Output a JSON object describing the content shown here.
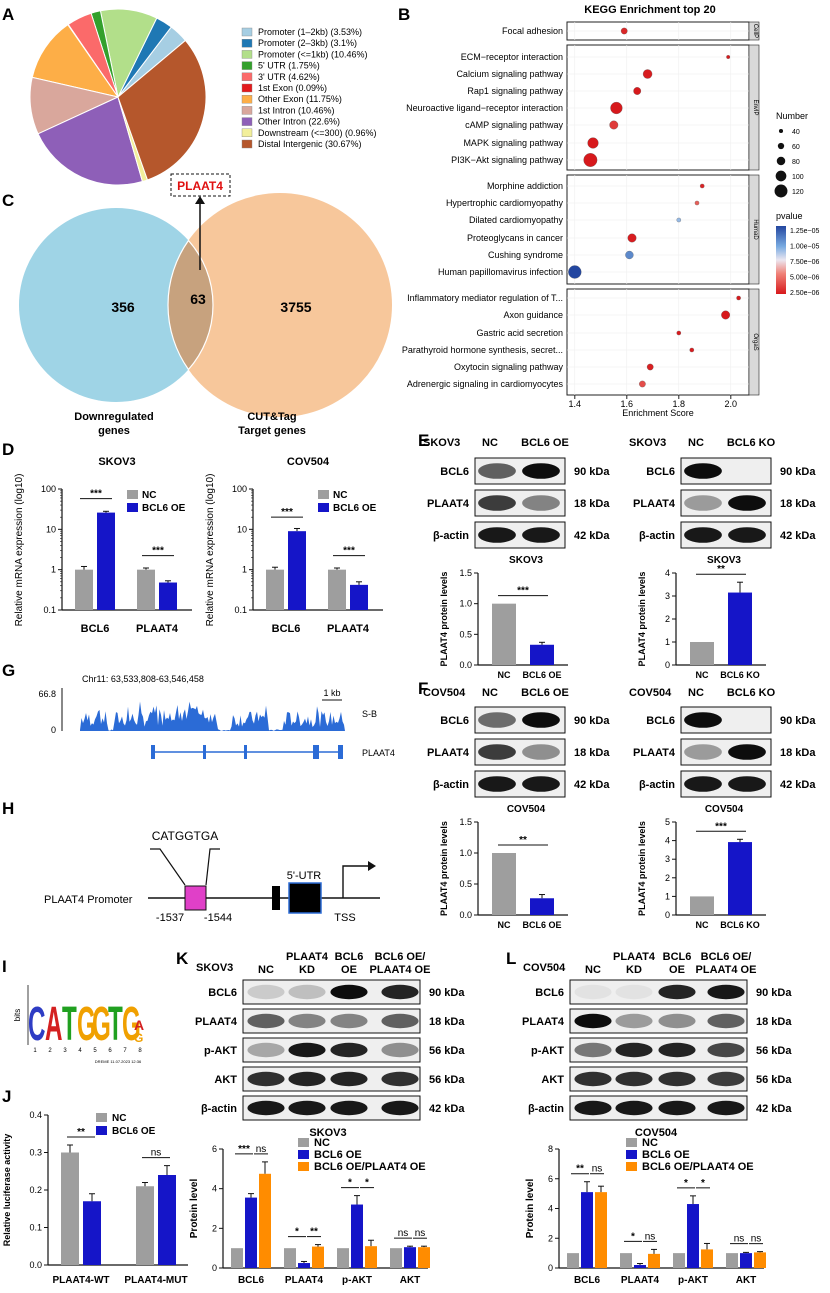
{
  "panels": {
    "A": "A",
    "B": "B",
    "C": "C",
    "D": "D",
    "E": "E",
    "F": "F",
    "G": "G",
    "H": "H",
    "I": "I",
    "J": "J",
    "K": "K",
    "L": "L"
  },
  "colors": {
    "nc": "#9e9e9e",
    "oe": "#1515c8",
    "oe_pl": "#ff8c00",
    "venn_left": "#9fd4e6",
    "venn_right": "#f7c79b",
    "venn_mid": "#c7a27e",
    "track": "#2b6bd6",
    "motif_pink": "#e040c8"
  },
  "chart_data": [
    {
      "id": "A",
      "type": "pie",
      "slices": [
        {
          "label": "Promoter (1–2kb) (3.53%)",
          "value": 3.53,
          "color": "#a6cee3"
        },
        {
          "label": "Promoter (2–3kb) (3.1%)",
          "value": 3.1,
          "color": "#1f78b4"
        },
        {
          "label": "Promoter (<=1kb) (10.46%)",
          "value": 10.46,
          "color": "#b2df8a"
        },
        {
          "label": "5' UTR (1.75%)",
          "value": 1.75,
          "color": "#33a02c"
        },
        {
          "label": "3' UTR (4.62%)",
          "value": 4.62,
          "color": "#fb6a6a"
        },
        {
          "label": "1st Exon (0.09%)",
          "value": 0.09,
          "color": "#e31a1c"
        },
        {
          "label": "Other Exon (11.75%)",
          "value": 11.75,
          "color": "#fdae47"
        },
        {
          "label": "1st Intron (10.46%)",
          "value": 10.46,
          "color": "#d9a79c"
        },
        {
          "label": "Other Intron (22.6%)",
          "value": 22.6,
          "color": "#8e5fb8"
        },
        {
          "label": "Downstream (<=300) (0.96%)",
          "value": 0.96,
          "color": "#f2ef9a"
        },
        {
          "label": "Distal Intergenic (30.67%)",
          "value": 30.67,
          "color": "#b5572c"
        }
      ]
    },
    {
      "id": "B",
      "type": "scatter",
      "title": "KEGG Enrichment top 20",
      "xlabel": "Enrichment Score",
      "xlim": [
        1.37,
        2.07
      ],
      "xticks": [
        "1.4",
        "1.6",
        "1.8",
        "2.0"
      ],
      "groups": [
        {
          "name": "CellP",
          "items": [
            {
              "term": "Focal adhesion",
              "x": 1.59,
              "n": 60,
              "p": 2.9e-06
            }
          ]
        },
        {
          "name": "EnvIP",
          "items": [
            {
              "term": "ECM−receptor interaction",
              "x": 1.99,
              "n": 35,
              "p": 2.5e-06
            },
            {
              "term": "Calcium signaling pathway",
              "x": 1.68,
              "n": 85,
              "p": 2.6e-06
            },
            {
              "term": "Rap1 signaling pathway",
              "x": 1.64,
              "n": 70,
              "p": 2.5e-06
            },
            {
              "term": "Neuroactive ligand−receptor interaction",
              "x": 1.56,
              "n": 110,
              "p": 2.5e-06
            },
            {
              "term": "cAMP signaling pathway",
              "x": 1.55,
              "n": 80,
              "p": 3.5e-06
            },
            {
              "term": "MAPK signaling pathway",
              "x": 1.47,
              "n": 100,
              "p": 2.5e-06
            },
            {
              "term": "PI3K−Akt signaling pathway",
              "x": 1.46,
              "n": 125,
              "p": 2.5e-06
            }
          ]
        },
        {
          "name": "HumaD",
          "items": [
            {
              "term": "Morphine addiction",
              "x": 1.89,
              "n": 40,
              "p": 2.8e-06
            },
            {
              "term": "Hypertrophic cardiomyopathy",
              "x": 1.87,
              "n": 40,
              "p": 4.5e-06
            },
            {
              "term": "Dilated cardiomyopathy",
              "x": 1.8,
              "n": 40,
              "p": 9e-06
            },
            {
              "term": "Proteoglycans in cancer",
              "x": 1.62,
              "n": 80,
              "p": 2.6e-06
            },
            {
              "term": "Cushing syndrome",
              "x": 1.61,
              "n": 75,
              "p": 1.05e-05
            },
            {
              "term": "Human papillomavirus infection",
              "x": 1.4,
              "n": 120,
              "p": 1.25e-05
            }
          ]
        },
        {
          "name": "OrgaS",
          "items": [
            {
              "term": "Inflammatory mediator regulation of T...",
              "x": 2.03,
              "n": 40,
              "p": 2.5e-06
            },
            {
              "term": "Axon guidance",
              "x": 1.98,
              "n": 80,
              "p": 2.5e-06
            },
            {
              "term": "Gastric acid secretion",
              "x": 1.8,
              "n": 40,
              "p": 2.5e-06
            },
            {
              "term": "Parathyroid hormone synthesis, secret...",
              "x": 1.85,
              "n": 40,
              "p": 2.6e-06
            },
            {
              "term": "Oxytocin signaling pathway",
              "x": 1.69,
              "n": 60,
              "p": 2.7e-06
            },
            {
              "term": "Adrenergic signaling in cardiomyocytes",
              "x": 1.66,
              "n": 60,
              "p": 4e-06
            }
          ]
        }
      ],
      "size_legend": {
        "title": "Number",
        "values": [
          "40",
          "60",
          "80",
          "100",
          "120"
        ]
      },
      "color_legend": {
        "title": "pvalue",
        "labels": [
          "1.25e−05",
          "1.00e−05",
          "7.50e−06",
          "5.00e−06",
          "2.50e−06"
        ]
      }
    },
    {
      "id": "C",
      "type": "venn",
      "label": "PLAAT4",
      "left": {
        "value": "356",
        "label": [
          "Downregulated",
          "genes"
        ]
      },
      "overlap": "63",
      "right": {
        "value": "3755",
        "label": [
          "CUT&Tag",
          "Target genes"
        ]
      }
    },
    {
      "id": "D",
      "type": "bar",
      "ylabel": "Relative mRNA expression (log10)",
      "yticks": [
        "100",
        "10",
        "1",
        "0.1"
      ],
      "legend": [
        "NC",
        "BCL6 OE"
      ],
      "charts": [
        {
          "title": "SKOV3",
          "categories": [
            "BCL6",
            "PLAAT4"
          ],
          "nc": [
            1,
            1
          ],
          "oe": [
            26,
            0.48
          ],
          "nc_err": [
            0.2,
            0.1
          ],
          "oe_err": [
            2,
            0.05
          ],
          "sig": [
            "***",
            "***"
          ]
        },
        {
          "title": "COV504",
          "categories": [
            "BCL6",
            "PLAAT4"
          ],
          "nc": [
            1,
            1
          ],
          "oe": [
            9,
            0.42
          ],
          "nc_err": [
            0.15,
            0.1
          ],
          "oe_err": [
            1.5,
            0.08
          ],
          "sig": [
            "***",
            "***"
          ]
        }
      ]
    },
    {
      "id": "EF",
      "type": "bar",
      "ylabel": "PLAAT4 protein levels",
      "charts": [
        {
          "title": "SKOV3",
          "categories": [
            "NC",
            "BCL6 OE"
          ],
          "values": [
            1,
            0.33
          ],
          "err": [
            0,
            0.04
          ],
          "ylim": [
            0,
            1.5
          ],
          "yticks": [
            "0.0",
            "0.5",
            "1.0",
            "1.5"
          ],
          "sig": "***"
        },
        {
          "title": "SKOV3",
          "categories": [
            "NC",
            "BCL6 KO"
          ],
          "values": [
            1,
            3.15
          ],
          "err": [
            0,
            0.45
          ],
          "ylim": [
            0,
            4
          ],
          "yticks": [
            "0",
            "1",
            "2",
            "3",
            "4"
          ],
          "sig": "**"
        },
        {
          "title": "COV504",
          "categories": [
            "NC",
            "BCL6 OE"
          ],
          "values": [
            1,
            0.27
          ],
          "err": [
            0,
            0.06
          ],
          "ylim": [
            0,
            1.5
          ],
          "yticks": [
            "0.0",
            "0.5",
            "1.0",
            "1.5"
          ],
          "sig": "**"
        },
        {
          "title": "COV504",
          "categories": [
            "NC",
            "BCL6 KO"
          ],
          "values": [
            1,
            3.92
          ],
          "err": [
            0,
            0.15
          ],
          "ylim": [
            0,
            5
          ],
          "yticks": [
            "0",
            "1",
            "2",
            "3",
            "4",
            "5"
          ],
          "sig": "***"
        }
      ]
    },
    {
      "id": "J",
      "type": "bar",
      "ylabel": "Relative luciferase activity",
      "ylim": [
        0,
        0.4
      ],
      "yticks": [
        "0.0",
        "0.1",
        "0.2",
        "0.3",
        "0.4"
      ],
      "categories": [
        "PLAAT4-WT",
        "PLAAT4-MUT"
      ],
      "legend": [
        "NC",
        "BCL6 OE"
      ],
      "nc": [
        0.3,
        0.21
      ],
      "oe": [
        0.17,
        0.24
      ],
      "nc_err": [
        0.02,
        0.01
      ],
      "oe_err": [
        0.02,
        0.025
      ],
      "sig": [
        "**",
        "ns"
      ]
    },
    {
      "id": "KL",
      "type": "bar",
      "ylabel": "Protein level",
      "legend": [
        "NC",
        "BCL6 OE",
        "BCL6 OE/PLAAT4 OE"
      ],
      "categories": [
        "BCL6",
        "PLAAT4",
        "p-AKT",
        "AKT"
      ],
      "charts": [
        {
          "title": "SKOV3",
          "ylim": [
            0,
            6
          ],
          "yticks": [
            "0",
            "2",
            "4",
            "6"
          ],
          "series": [
            {
              "name": "NC",
              "values": [
                1,
                1,
                1,
                1
              ]
            },
            {
              "name": "BCL6 OE",
              "values": [
                3.55,
                0.25,
                3.2,
                1.05
              ]
            },
            {
              "name": "BCL6 OE/PLAAT4 OE",
              "values": [
                4.75,
                1.08,
                1.1,
                1.05
              ]
            }
          ],
          "err": [
            [
              0,
              0,
              0,
              0
            ],
            [
              0.2,
              0.08,
              0.45,
              0.05
            ],
            [
              0.6,
              0.1,
              0.3,
              0.05
            ]
          ],
          "sig": [
            [
              "***",
              "ns"
            ],
            [
              "*",
              "**"
            ],
            [
              "*",
              "*"
            ],
            [
              "ns",
              "ns"
            ]
          ]
        },
        {
          "title": "COV504",
          "ylim": [
            0,
            8
          ],
          "yticks": [
            "0",
            "2",
            "4",
            "6",
            "8"
          ],
          "series": [
            {
              "name": "NC",
              "values": [
                1,
                1,
                1,
                1
              ]
            },
            {
              "name": "BCL6 OE",
              "values": [
                5.1,
                0.2,
                4.3,
                1.0
              ]
            },
            {
              "name": "BCL6 OE/PLAAT4 OE",
              "values": [
                5.1,
                0.95,
                1.25,
                1.05
              ]
            }
          ],
          "err": [
            [
              0,
              0,
              0,
              0
            ],
            [
              0.7,
              0.1,
              0.55,
              0.05
            ],
            [
              0.4,
              0.3,
              0.4,
              0.05
            ]
          ],
          "sig": [
            [
              "**",
              "ns"
            ],
            [
              "*",
              "ns"
            ],
            [
              "*",
              "*"
            ],
            [
              "ns",
              "ns"
            ]
          ]
        }
      ]
    }
  ],
  "blots": {
    "E_left": {
      "cell": "SKOV3",
      "lanes": [
        "NC",
        "BCL6 OE"
      ],
      "rows": [
        {
          "name": "BCL6",
          "kda": "90 kDa"
        },
        {
          "name": "PLAAT4",
          "kda": "18 kDa"
        },
        {
          "name": "β-actin",
          "kda": "42 kDa"
        }
      ]
    },
    "E_right": {
      "cell": "SKOV3",
      "lanes": [
        "NC",
        "BCL6 KO"
      ],
      "rows": [
        {
          "name": "BCL6",
          "kda": "90 kDa"
        },
        {
          "name": "PLAAT4",
          "kda": "18 kDa"
        },
        {
          "name": "β-actin",
          "kda": "42 kDa"
        }
      ]
    },
    "F_left": {
      "cell": "COV504",
      "lanes": [
        "NC",
        "BCL6 OE"
      ],
      "rows": [
        {
          "name": "BCL6",
          "kda": "90 kDa"
        },
        {
          "name": "PLAAT4",
          "kda": "18 kDa"
        },
        {
          "name": "β-actin",
          "kda": "42 kDa"
        }
      ]
    },
    "F_right": {
      "cell": "COV504",
      "lanes": [
        "NC",
        "BCL6 KO"
      ],
      "rows": [
        {
          "name": "BCL6",
          "kda": "90 kDa"
        },
        {
          "name": "PLAAT4",
          "kda": "18 kDa"
        },
        {
          "name": "β-actin",
          "kda": "42 kDa"
        }
      ]
    },
    "K": {
      "cell": "SKOV3",
      "lanes": [
        "NC",
        [
          "PLAAT4",
          "KD"
        ],
        [
          "BCL6",
          "OE"
        ],
        [
          "BCL6 OE/",
          "PLAAT4 OE"
        ]
      ],
      "rows": [
        {
          "name": "BCL6",
          "kda": "90 kDa"
        },
        {
          "name": "PLAAT4",
          "kda": "18 kDa"
        },
        {
          "name": "p-AKT",
          "kda": "56 kDa"
        },
        {
          "name": "AKT",
          "kda": "56 kDa"
        },
        {
          "name": "β-actin",
          "kda": "42 kDa"
        }
      ]
    },
    "L": {
      "cell": "COV504",
      "lanes": [
        "NC",
        [
          "PLAAT4",
          "KD"
        ],
        [
          "BCL6",
          "OE"
        ],
        [
          "BCL6 OE/",
          "PLAAT4 OE"
        ]
      ],
      "rows": [
        {
          "name": "BCL6",
          "kda": "90 kDa"
        },
        {
          "name": "PLAAT4",
          "kda": "18 kDa"
        },
        {
          "name": "p-AKT",
          "kda": "56 kDa"
        },
        {
          "name": "AKT",
          "kda": "56 kDa"
        },
        {
          "name": "β-actin",
          "kda": "42 kDa"
        }
      ]
    }
  },
  "track_G": {
    "region": "Chr11: 63,533,808-63,546,458",
    "ymax": "66.8",
    "ymin": "0",
    "scale": "1 kb",
    "track": "S-B",
    "gene": "PLAAT4"
  },
  "promoter_H": {
    "motif": "CATGGTGA",
    "label": "PLAAT4  Promoter",
    "pos1": "-1537",
    "pos2": "-1544",
    "utr": "5'-UTR",
    "tss": "TSS"
  },
  "logo_I": {
    "letters": [
      "C",
      "A",
      "T",
      "G",
      "G",
      "T",
      "G"
    ],
    "last_top": "A",
    "last_bottom": "G",
    "ylabel": "bits",
    "footer": "DREME 11.07.2023 12:36",
    "positions": [
      "1",
      "2",
      "3",
      "4",
      "5",
      "6",
      "7",
      "8"
    ]
  }
}
